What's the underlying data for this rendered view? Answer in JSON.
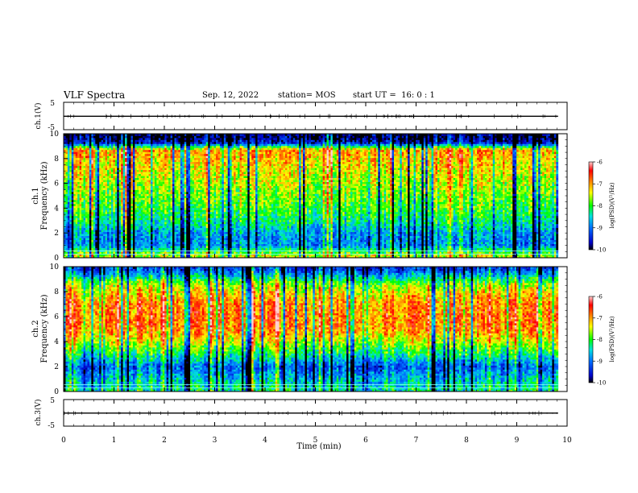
{
  "header": {
    "title": "VLF Spectra",
    "date": "Sep. 12, 2022",
    "station": "station= MOS",
    "start": "start UT =  16: 0 : 1"
  },
  "chart_data": [
    {
      "type": "line",
      "panel": "ch1-waveform",
      "ylabel": "ch.1(V)",
      "ylim": [
        -5,
        5
      ],
      "yticks": [
        "5",
        "-5"
      ],
      "xlim": [
        0,
        10
      ],
      "x": [
        0,
        1,
        2,
        3,
        4,
        5,
        6,
        7,
        8,
        9,
        9.82
      ],
      "values": [
        -0.1,
        -0.1,
        -0.1,
        -0.1,
        -0.1,
        -0.1,
        -0.1,
        -0.1,
        -0.1,
        -0.1,
        -0.1
      ]
    },
    {
      "type": "heatmap",
      "panel": "ch1-spectrogram",
      "ylabel": "ch.1",
      "ylabel2": "Frequency (kHz)",
      "ylim": [
        0,
        10
      ],
      "yticks": [
        "0",
        "2",
        "4",
        "6",
        "8",
        "10"
      ],
      "xlim": [
        0,
        9.82
      ],
      "colorbar": {
        "label": "log(PSD)(V²/Hz)",
        "range": [
          -10,
          -6
        ],
        "ticks": [
          "-6",
          "-7",
          "-8",
          "-9",
          "-10"
        ]
      },
      "freq_profile_kHz": [
        0.25,
        1,
        2,
        3,
        4,
        5,
        6,
        7,
        8,
        8.7,
        9.3,
        9.8
      ],
      "log_psd_profile": [
        -7.6,
        -8.9,
        -8.8,
        -8.3,
        -8.0,
        -7.8,
        -7.6,
        -7.4,
        -7.2,
        -7.0,
        -9.6,
        -9.9
      ]
    },
    {
      "type": "heatmap",
      "panel": "ch2-spectrogram",
      "ylabel": "ch.2",
      "ylabel2": "Frequency (kHz)",
      "ylim": [
        0,
        10
      ],
      "yticks": [
        "0",
        "2",
        "4",
        "6",
        "8",
        "10"
      ],
      "xlim": [
        0,
        9.82
      ],
      "colorbar": {
        "label": "log(PSD)(V²/Hz)",
        "range": [
          -10,
          -6
        ],
        "ticks": [
          "-6",
          "-7",
          "-8",
          "-9",
          "-10"
        ]
      },
      "freq_profile_kHz": [
        0.25,
        1,
        2,
        3,
        4,
        5,
        6,
        7,
        8,
        8.7,
        9.3,
        9.8
      ],
      "log_psd_profile": [
        -8.3,
        -8.6,
        -9.1,
        -8.2,
        -7.5,
        -6.9,
        -6.8,
        -6.9,
        -7.3,
        -7.8,
        -8.6,
        -9.3
      ]
    },
    {
      "type": "line",
      "panel": "ch3-waveform",
      "ylabel": "ch.3(V)",
      "ylim": [
        -5,
        5
      ],
      "yticks": [
        "5",
        "-5"
      ],
      "xlim": [
        0,
        10
      ],
      "x": [
        0,
        1,
        2,
        3,
        4,
        5,
        6,
        7,
        8,
        9,
        9.82
      ],
      "values": [
        -0.1,
        -0.1,
        -0.1,
        -0.1,
        -0.1,
        -0.1,
        -0.1,
        -0.1,
        -0.1,
        -0.1,
        -0.1
      ]
    }
  ],
  "xaxis": {
    "label": "Time (min)",
    "ticks": [
      "0",
      "1",
      "2",
      "3",
      "4",
      "5",
      "6",
      "7",
      "8",
      "9",
      "10"
    ]
  }
}
